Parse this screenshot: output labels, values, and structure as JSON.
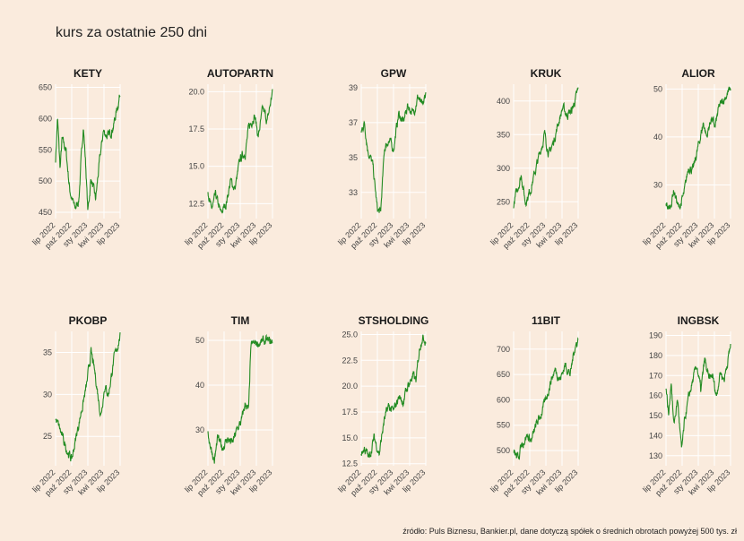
{
  "title": "kurs za ostatnie 250 dni",
  "caption": "źródło: Puls Biznesu, Bankier.pl, dane dotyczą spółek o średnich obrotach powyżej 500 tys. zł",
  "colors": {
    "background": "#faebdd",
    "line": "#228b22",
    "grid": "#ffffff"
  },
  "chart_data": {
    "type": "line",
    "x_ticks": [
      "lip 2022",
      "paź 2022",
      "sty 2023",
      "kwi 2023",
      "lip 2023"
    ],
    "grid": true,
    "facets": [
      {
        "name": "KETY",
        "ylim": [
          440,
          655
        ],
        "yticks": [
          450,
          500,
          550,
          600,
          650
        ],
        "keypoints": [
          [
            0,
            535
          ],
          [
            0.03,
            600
          ],
          [
            0.07,
            520
          ],
          [
            0.1,
            565
          ],
          [
            0.16,
            550
          ],
          [
            0.22,
            485
          ],
          [
            0.3,
            455
          ],
          [
            0.36,
            470
          ],
          [
            0.43,
            590
          ],
          [
            0.47,
            520
          ],
          [
            0.5,
            450
          ],
          [
            0.55,
            505
          ],
          [
            0.62,
            470
          ],
          [
            0.68,
            530
          ],
          [
            0.74,
            580
          ],
          [
            0.82,
            570
          ],
          [
            0.9,
            590
          ],
          [
            1,
            640
          ]
        ]
      },
      {
        "name": "AUTOPARTN",
        "ylim": [
          11.5,
          20.5
        ],
        "yticks": [
          12.5,
          15.0,
          17.5,
          20.0
        ],
        "keypoints": [
          [
            0,
            13.5
          ],
          [
            0.05,
            12.0
          ],
          [
            0.12,
            13.0
          ],
          [
            0.2,
            11.8
          ],
          [
            0.28,
            12.5
          ],
          [
            0.35,
            14.0
          ],
          [
            0.42,
            13.5
          ],
          [
            0.5,
            15.5
          ],
          [
            0.58,
            16.0
          ],
          [
            0.63,
            17.5
          ],
          [
            0.72,
            18.5
          ],
          [
            0.78,
            17.0
          ],
          [
            0.85,
            18.8
          ],
          [
            0.92,
            18.0
          ],
          [
            1,
            20.0
          ]
        ]
      },
      {
        "name": "GPW",
        "ylim": [
          31.5,
          39.2
        ],
        "yticks": [
          33,
          35,
          37,
          39
        ],
        "keypoints": [
          [
            0,
            36.5
          ],
          [
            0.05,
            37.0
          ],
          [
            0.1,
            35.5
          ],
          [
            0.18,
            34.5
          ],
          [
            0.25,
            32.0
          ],
          [
            0.3,
            31.8
          ],
          [
            0.36,
            35.5
          ],
          [
            0.42,
            36.0
          ],
          [
            0.5,
            35.5
          ],
          [
            0.58,
            37.5
          ],
          [
            0.65,
            37.0
          ],
          [
            0.72,
            38.0
          ],
          [
            0.8,
            37.5
          ],
          [
            0.88,
            38.5
          ],
          [
            0.95,
            37.8
          ],
          [
            1,
            38.7
          ]
        ]
      },
      {
        "name": "KRUK",
        "ylim": [
          225,
          425
        ],
        "yticks": [
          250,
          300,
          350,
          400
        ],
        "keypoints": [
          [
            0,
            245
          ],
          [
            0.06,
            270
          ],
          [
            0.12,
            290
          ],
          [
            0.18,
            250
          ],
          [
            0.25,
            265
          ],
          [
            0.32,
            290
          ],
          [
            0.4,
            320
          ],
          [
            0.48,
            350
          ],
          [
            0.55,
            320
          ],
          [
            0.62,
            340
          ],
          [
            0.7,
            370
          ],
          [
            0.76,
            390
          ],
          [
            0.82,
            380
          ],
          [
            0.9,
            385
          ],
          [
            1,
            415
          ]
        ]
      },
      {
        "name": "ALIOR",
        "ylim": [
          23,
          51
        ],
        "yticks": [
          30,
          40,
          50
        ],
        "keypoints": [
          [
            0,
            26
          ],
          [
            0.06,
            25
          ],
          [
            0.12,
            29
          ],
          [
            0.2,
            25
          ],
          [
            0.28,
            28
          ],
          [
            0.35,
            34
          ],
          [
            0.42,
            33
          ],
          [
            0.5,
            38
          ],
          [
            0.58,
            43
          ],
          [
            0.63,
            40
          ],
          [
            0.7,
            44
          ],
          [
            0.76,
            42
          ],
          [
            0.82,
            46
          ],
          [
            0.9,
            48
          ],
          [
            1,
            50
          ]
        ]
      },
      {
        "name": "PKOBP",
        "ylim": [
          21.5,
          37.5
        ],
        "yticks": [
          25,
          30,
          35
        ],
        "keypoints": [
          [
            0,
            27
          ],
          [
            0.06,
            26
          ],
          [
            0.12,
            24.5
          ],
          [
            0.2,
            23
          ],
          [
            0.25,
            22.2
          ],
          [
            0.32,
            25
          ],
          [
            0.4,
            28
          ],
          [
            0.48,
            31
          ],
          [
            0.55,
            35
          ],
          [
            0.62,
            32
          ],
          [
            0.7,
            27.5
          ],
          [
            0.76,
            31
          ],
          [
            0.82,
            30
          ],
          [
            0.9,
            34
          ],
          [
            1,
            37
          ]
        ]
      },
      {
        "name": "TIM",
        "ylim": [
          22,
          52
        ],
        "yticks": [
          30,
          40,
          50
        ],
        "keypoints": [
          [
            0,
            29
          ],
          [
            0.05,
            26
          ],
          [
            0.1,
            23
          ],
          [
            0.15,
            28
          ],
          [
            0.22,
            26
          ],
          [
            0.3,
            28
          ],
          [
            0.38,
            27
          ],
          [
            0.45,
            30
          ],
          [
            0.52,
            32
          ],
          [
            0.58,
            36
          ],
          [
            0.63,
            34
          ],
          [
            0.66,
            47
          ],
          [
            0.68,
            49
          ],
          [
            0.8,
            49.5
          ],
          [
            0.9,
            49.8
          ],
          [
            1,
            49.5
          ]
        ]
      },
      {
        "name": "STSHOLDING",
        "ylim": [
          12.3,
          25.3
        ],
        "yticks": [
          12.5,
          15.0,
          17.5,
          20.0,
          22.5,
          25.0
        ],
        "keypoints": [
          [
            0,
            13.5
          ],
          [
            0.05,
            14.0
          ],
          [
            0.12,
            13.0
          ],
          [
            0.2,
            15.0
          ],
          [
            0.28,
            13.5
          ],
          [
            0.35,
            16.5
          ],
          [
            0.42,
            18.0
          ],
          [
            0.5,
            17.5
          ],
          [
            0.58,
            19.0
          ],
          [
            0.65,
            18.5
          ],
          [
            0.72,
            20.0
          ],
          [
            0.8,
            21.0
          ],
          [
            0.85,
            20.5
          ],
          [
            0.9,
            23.5
          ],
          [
            0.94,
            24.8
          ],
          [
            1,
            24.5
          ]
        ]
      },
      {
        "name": "11BIT",
        "ylim": [
          470,
          735
        ],
        "yticks": [
          500,
          550,
          600,
          650,
          700
        ],
        "keypoints": [
          [
            0,
            500
          ],
          [
            0.06,
            485
          ],
          [
            0.12,
            510
          ],
          [
            0.2,
            530
          ],
          [
            0.28,
            520
          ],
          [
            0.35,
            550
          ],
          [
            0.42,
            570
          ],
          [
            0.5,
            600
          ],
          [
            0.58,
            640
          ],
          [
            0.65,
            660
          ],
          [
            0.72,
            640
          ],
          [
            0.8,
            670
          ],
          [
            0.88,
            650
          ],
          [
            0.94,
            700
          ],
          [
            1,
            720
          ]
        ]
      },
      {
        "name": "INGBSK",
        "ylim": [
          125,
          192
        ],
        "yticks": [
          130,
          140,
          150,
          160,
          170,
          180,
          190
        ],
        "keypoints": [
          [
            0,
            165
          ],
          [
            0.04,
            150
          ],
          [
            0.08,
            168
          ],
          [
            0.12,
            145
          ],
          [
            0.18,
            158
          ],
          [
            0.24,
            132
          ],
          [
            0.3,
            150
          ],
          [
            0.36,
            160
          ],
          [
            0.42,
            168
          ],
          [
            0.48,
            175
          ],
          [
            0.54,
            162
          ],
          [
            0.6,
            178
          ],
          [
            0.66,
            168
          ],
          [
            0.72,
            170
          ],
          [
            0.78,
            160
          ],
          [
            0.84,
            172
          ],
          [
            0.9,
            168
          ],
          [
            1,
            185
          ]
        ]
      }
    ]
  }
}
